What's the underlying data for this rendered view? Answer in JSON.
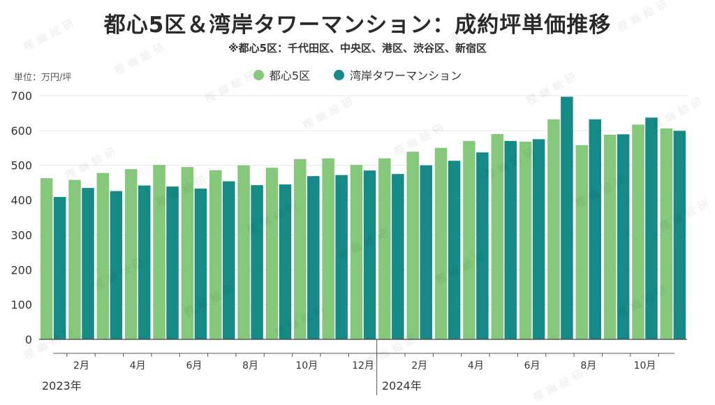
{
  "title": "都心5区＆湾岸タワーマンション：成約坪単価推移",
  "subtitle": "※都心5区：千代田区、中央区、港区、渋谷区、新宿区",
  "unit_label": "単位：万円/坪",
  "watermark": "樫幽絵研",
  "colors": {
    "series1": "#85c77b",
    "series2": "#168a87"
  },
  "chart_data": {
    "type": "bar",
    "title": "都心5区＆湾岸タワーマンション：成約坪単価推移",
    "ylabel": "単位：万円/坪",
    "ylim": [
      0,
      700
    ],
    "yticks": [
      0,
      100,
      200,
      300,
      400,
      500,
      600,
      700
    ],
    "grid": true,
    "legend_position": "top-center",
    "categories": [
      "2023-01",
      "2023-02",
      "2023-03",
      "2023-04",
      "2023-05",
      "2023-06",
      "2023-07",
      "2023-08",
      "2023-09",
      "2023-10",
      "2023-11",
      "2023-12",
      "2024-01",
      "2024-02",
      "2024-03",
      "2024-04",
      "2024-05",
      "2024-06",
      "2024-07",
      "2024-08",
      "2024-09",
      "2024-10",
      "2024-11"
    ],
    "x_tick_labels": [
      {
        "index": 1,
        "label": "2月"
      },
      {
        "index": 3,
        "label": "4月"
      },
      {
        "index": 5,
        "label": "6月"
      },
      {
        "index": 7,
        "label": "8月"
      },
      {
        "index": 9,
        "label": "10月"
      },
      {
        "index": 11,
        "label": "12月"
      },
      {
        "index": 13,
        "label": "2月"
      },
      {
        "index": 15,
        "label": "4月"
      },
      {
        "index": 17,
        "label": "6月"
      },
      {
        "index": 19,
        "label": "8月"
      },
      {
        "index": 21,
        "label": "10月"
      }
    ],
    "year_labels": [
      {
        "index": 0,
        "label": "2023年"
      },
      {
        "index": 12,
        "label": "2024年"
      }
    ],
    "series": [
      {
        "name": "都心5区",
        "values": [
          463,
          458,
          478,
          489,
          501,
          495,
          486,
          500,
          493,
          518,
          520,
          501,
          520,
          539,
          550,
          570,
          590,
          568,
          632,
          558,
          588,
          617,
          606
        ]
      },
      {
        "name": "湾岸タワーマンション",
        "values": [
          409,
          435,
          426,
          442,
          439,
          433,
          454,
          443,
          445,
          469,
          472,
          485,
          475,
          500,
          513,
          537,
          570,
          575,
          697,
          632,
          589,
          637,
          599
        ]
      }
    ]
  }
}
